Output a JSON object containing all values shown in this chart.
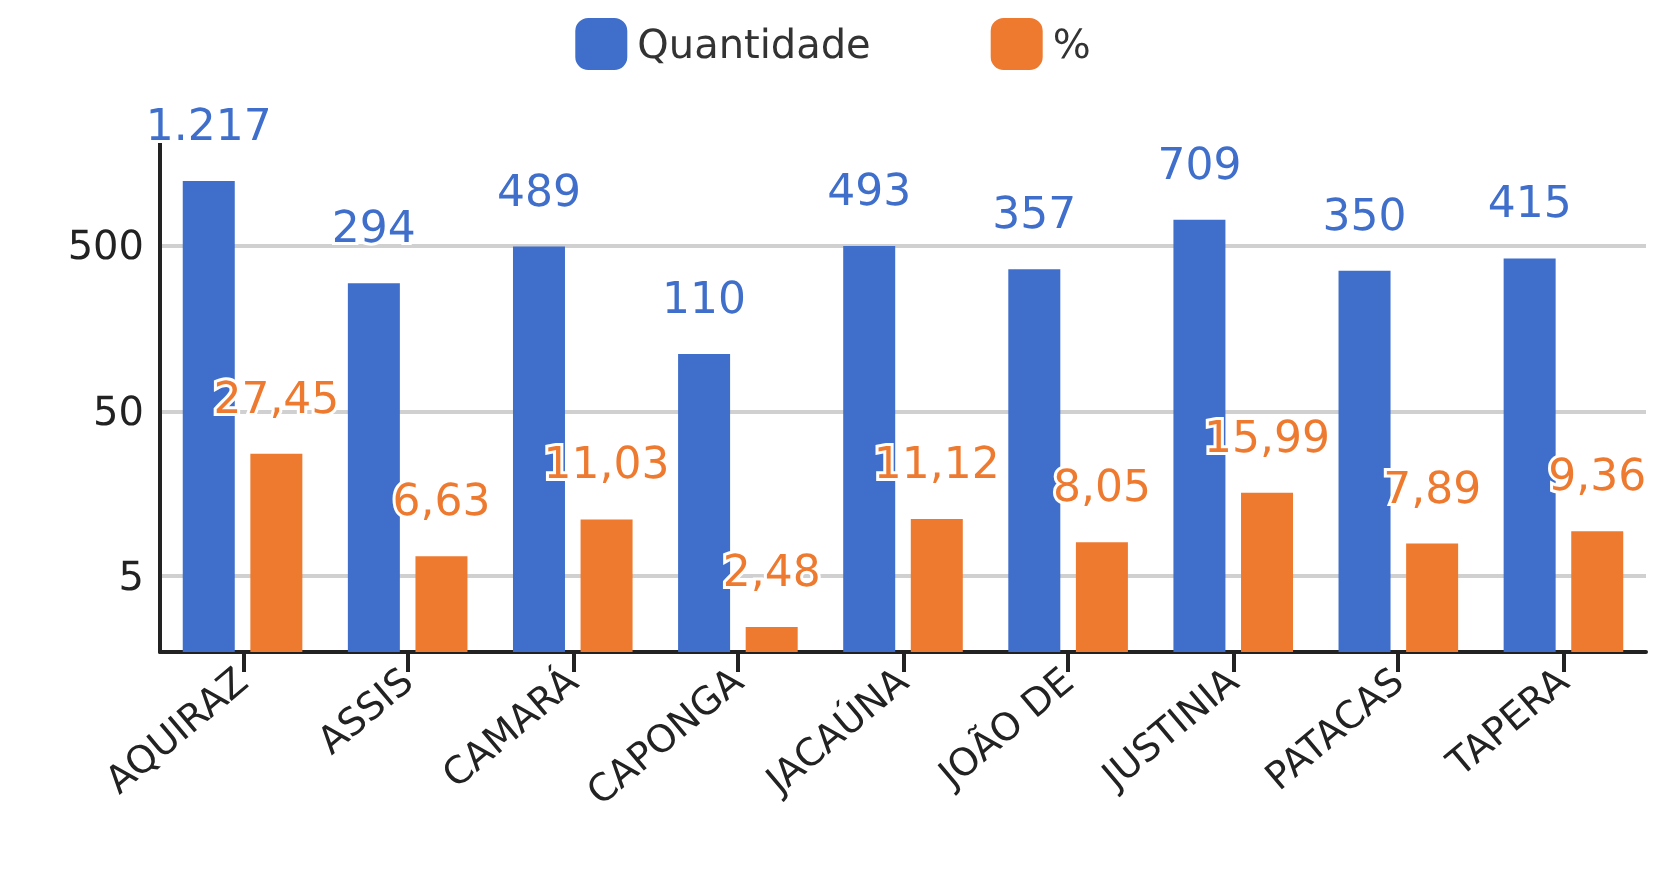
{
  "chart_data": {
    "type": "bar",
    "categories": [
      "AQUIRAZ",
      "ASSIS",
      "CAMARÁ",
      "CAPONGA",
      "JACAÚNA",
      "JOÃO DE",
      "JUSTINIA",
      "PATACAS",
      "TAPERA"
    ],
    "series": [
      {
        "name": "Quantidade",
        "color": "#3f6fcb",
        "values": [
          1217,
          294,
          489,
          110,
          493,
          357,
          709,
          350,
          415
        ],
        "value_labels": [
          "1.217",
          "294",
          "489",
          "110",
          "493",
          "357",
          "709",
          "350",
          "415"
        ]
      },
      {
        "name": "%",
        "color": "#ee7a30",
        "values": [
          27.45,
          6.63,
          11.03,
          2.48,
          11.12,
          8.05,
          15.99,
          7.89,
          9.36
        ],
        "value_labels": [
          "27,45",
          "6,63",
          "11,03",
          "2,48",
          "11,12",
          "8,05",
          "15,99",
          "7,89",
          "9,36"
        ]
      }
    ],
    "log": "y",
    "ylim": [
      1.75,
      3000
    ],
    "yticks": [
      5,
      50,
      500
    ],
    "grid": "y",
    "legend": "top"
  }
}
